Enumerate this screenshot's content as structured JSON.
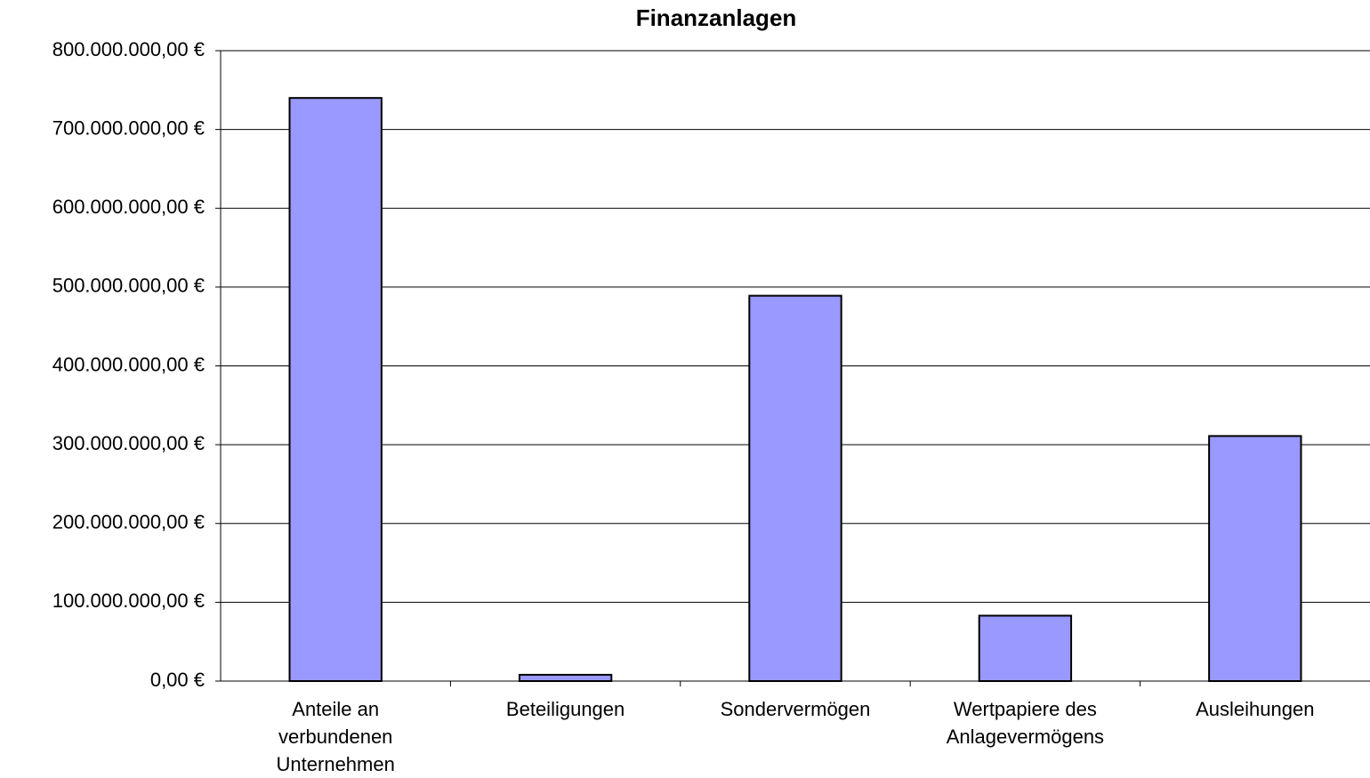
{
  "chart_data": {
    "type": "bar",
    "title": "Finanzanlagen",
    "categories": [
      "Anteile an verbundenen Unternehmen",
      "Beteiligungen",
      "Sondervermögen",
      "Wertpapiere des Anlagevermögens",
      "Ausleihungen"
    ],
    "values": [
      740000000,
      8000000,
      489000000,
      83000000,
      311000000
    ],
    "color": "#9999ff",
    "ylim": [
      0,
      800000000
    ],
    "yticks": [
      {
        "value": 0,
        "label": "0,00 €"
      },
      {
        "value": 100000000,
        "label": "100.000.000,00 €"
      },
      {
        "value": 200000000,
        "label": "200.000.000,00 €"
      },
      {
        "value": 300000000,
        "label": "300.000.000,00 €"
      },
      {
        "value": 400000000,
        "label": "400.000.000,00 €"
      },
      {
        "value": 500000000,
        "label": "500.000.000,00 €"
      },
      {
        "value": 600000000,
        "label": "600.000.000,00 €"
      },
      {
        "value": 700000000,
        "label": "700.000.000,00 €"
      },
      {
        "value": 800000000,
        "label": "800.000.000,00 €"
      }
    ],
    "grid": true
  }
}
